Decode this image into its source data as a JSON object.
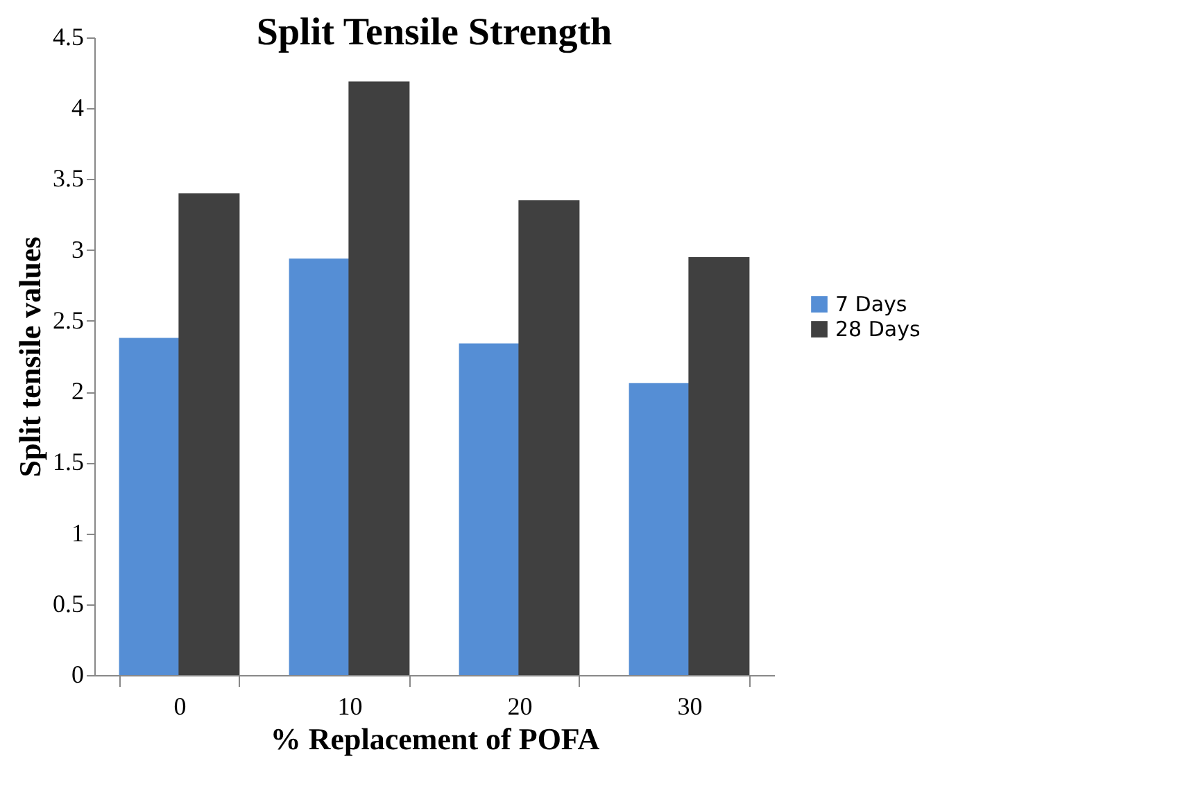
{
  "chart_data": {
    "type": "bar",
    "title": "Split Tensile Strength",
    "xlabel": "% Replacement of POFA",
    "ylabel": "Split tensile values",
    "categories": [
      "0",
      "10",
      "20",
      "30"
    ],
    "series": [
      {
        "name": "7 Days",
        "color": "#558ed5",
        "values": [
          2.38,
          2.94,
          2.34,
          2.06
        ]
      },
      {
        "name": "28 Days",
        "color": "#404040",
        "values": [
          3.4,
          4.19,
          3.35,
          2.95
        ]
      }
    ],
    "ylim": [
      0,
      4.5
    ],
    "yticks": [
      0,
      0.5,
      1,
      1.5,
      2,
      2.5,
      3,
      3.5,
      4,
      4.5
    ],
    "grid": false,
    "legend": "right"
  }
}
